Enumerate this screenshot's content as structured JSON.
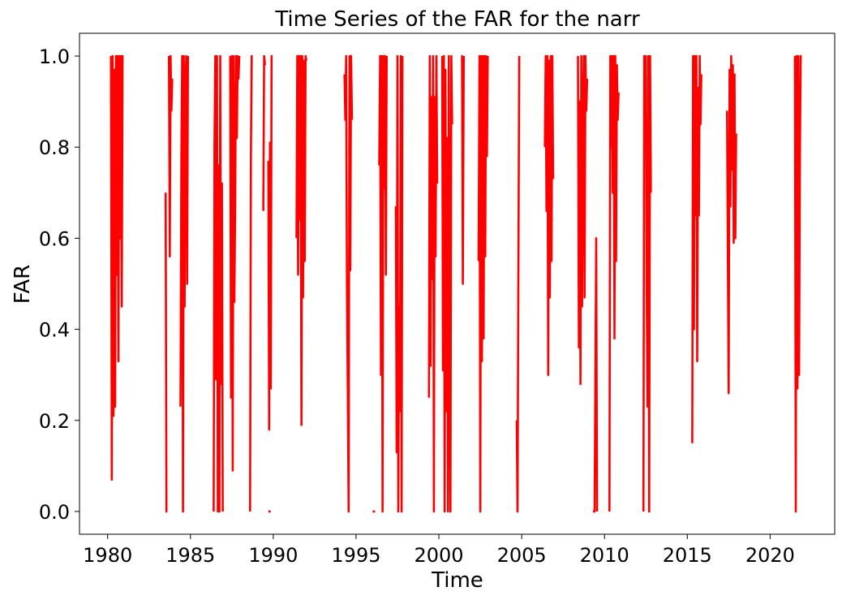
{
  "chart_data": {
    "type": "line",
    "title": "Time Series of the FAR for the narr",
    "xlabel": "Time",
    "ylabel": "FAR",
    "xlim": [
      1978.3,
      2023.9
    ],
    "ylim": [
      -0.05,
      1.05
    ],
    "x_ticks": [
      {
        "value": 1980,
        "label": "1980"
      },
      {
        "value": 1985,
        "label": "1985"
      },
      {
        "value": 1990,
        "label": "1990"
      },
      {
        "value": 1995,
        "label": "1995"
      },
      {
        "value": 2000,
        "label": "2000"
      },
      {
        "value": 2005,
        "label": "2005"
      },
      {
        "value": 2010,
        "label": "2010"
      },
      {
        "value": 2015,
        "label": "2015"
      },
      {
        "value": 2020,
        "label": "2020"
      }
    ],
    "y_ticks": [
      {
        "value": 0.0,
        "label": "0.0"
      },
      {
        "value": 0.2,
        "label": "0.2"
      },
      {
        "value": 0.4,
        "label": "0.4"
      },
      {
        "value": 0.6,
        "label": "0.6"
      },
      {
        "value": 0.8,
        "label": "0.8"
      },
      {
        "value": 1.0,
        "label": "1.0"
      }
    ],
    "grid": false,
    "legend": "none",
    "series": [
      {
        "color": "#ff0000",
        "segments": [
          {
            "x": [
              1980.2,
              1980.25,
              1980.3,
              1980.35,
              1980.4,
              1980.45,
              1980.5,
              1980.55,
              1980.6,
              1980.65,
              1980.7,
              1980.75,
              1980.8,
              1980.85,
              1980.9,
              1980.95
            ],
            "y": [
              1.0,
              0.07,
              1.0,
              0.21,
              0.97,
              0.23,
              1.0,
              0.52,
              1.0,
              0.33,
              1.0,
              0.6,
              1.0,
              0.45,
              1.0,
              1.0
            ]
          },
          {
            "x": [
              1983.5,
              1983.55,
              1983.6
            ],
            "y": [
              0.7,
              0.0,
              0.0
            ]
          },
          {
            "x": [
              1983.7,
              1983.75,
              1983.8,
              1983.85,
              1983.9
            ],
            "y": [
              1.0,
              0.56,
              1.0,
              0.88,
              0.95
            ]
          },
          {
            "x": [
              1984.4,
              1984.45,
              1984.5,
              1984.55,
              1984.6,
              1984.65,
              1984.7,
              1984.75,
              1984.8,
              1984.85
            ],
            "y": [
              0.23,
              0.78,
              1.0,
              0.0,
              1.0,
              0.45,
              0.95,
              1.0,
              0.5,
              1.0
            ]
          },
          {
            "x": [
              1986.4,
              1986.45,
              1986.5,
              1986.55,
              1986.6,
              1986.65,
              1986.7,
              1986.75,
              1986.8,
              1986.85,
              1986.9,
              1986.95
            ],
            "y": [
              0.0,
              0.8,
              1.0,
              0.29,
              1.0,
              0.0,
              0.76,
              0.0,
              1.0,
              0.28,
              0.72,
              0.0
            ]
          },
          {
            "x": [
              1987.4,
              1987.45,
              1987.5,
              1987.55,
              1987.6,
              1987.65,
              1987.7,
              1987.75,
              1987.8,
              1987.85,
              1987.9,
              1987.95
            ],
            "y": [
              1.0,
              0.25,
              1.0,
              0.09,
              1.0,
              0.46,
              0.67,
              1.0,
              0.82,
              1.0,
              0.95,
              1.0
            ]
          },
          {
            "x": [
              1988.6,
              1988.65,
              1988.7,
              1988.75
            ],
            "y": [
              0.0,
              0.78,
              1.0,
              1.0
            ]
          },
          {
            "x": [
              1989.4,
              1989.45,
              1989.5
            ],
            "y": [
              0.66,
              1.0,
              0.98
            ]
          },
          {
            "x": [
              1989.7,
              1989.75,
              1989.8,
              1989.85,
              1989.9,
              1989.95
            ],
            "y": [
              0.77,
              0.18,
              0.81,
              0.27,
              1.0,
              1.0
            ]
          },
          {
            "x": [
              1989.7,
              1989.85
            ],
            "y": [
              0.0,
              0.0
            ]
          },
          {
            "x": [
              1991.4,
              1991.45,
              1991.5,
              1991.55,
              1991.6,
              1991.65,
              1991.7,
              1991.75,
              1991.8,
              1991.85,
              1991.9,
              1991.95,
              1992.0
            ],
            "y": [
              0.6,
              1.0,
              0.52,
              1.0,
              0.64,
              1.0,
              0.19,
              1.0,
              0.47,
              0.99,
              0.55,
              1.0,
              0.99
            ]
          },
          {
            "x": [
              1994.3,
              1994.35,
              1994.4,
              1994.45,
              1994.5,
              1994.55,
              1994.6,
              1994.65,
              1994.7,
              1994.75
            ],
            "y": [
              0.96,
              0.86,
              1.0,
              0.5,
              0.27,
              0.0,
              1.0,
              0.53,
              1.0,
              0.86
            ]
          },
          {
            "x": [
              1996.0,
              1996.15
            ],
            "y": [
              0.0,
              0.0
            ]
          },
          {
            "x": [
              1996.4,
              1996.45,
              1996.5,
              1996.55,
              1996.6,
              1996.65,
              1996.7,
              1996.75,
              1996.8,
              1996.85
            ],
            "y": [
              0.76,
              1.0,
              0.3,
              1.0,
              0.0,
              1.0,
              0.71,
              1.0,
              0.52,
              1.0
            ]
          },
          {
            "x": [
              1997.4,
              1997.45,
              1997.5,
              1997.55,
              1997.6,
              1997.65,
              1997.7,
              1997.75,
              1997.8
            ],
            "y": [
              0.67,
              0.13,
              1.0,
              0.0,
              0.45,
              0.22,
              1.0,
              0.0,
              1.0
            ]
          },
          {
            "x": [
              1999.4,
              1999.45,
              1999.5,
              1999.55,
              1999.6,
              1999.65,
              1999.7,
              1999.75,
              1999.8,
              1999.85,
              1999.9
            ],
            "y": [
              0.25,
              1.0,
              0.32,
              0.91,
              0.51,
              1.0,
              0.0,
              0.91,
              0.56,
              1.0,
              0.72
            ]
          },
          {
            "x": [
              2000.2,
              2000.25,
              2000.3,
              2000.35,
              2000.4,
              2000.45,
              2000.5,
              2000.55,
              2000.6,
              2000.65,
              2000.7,
              2000.75,
              2000.8
            ],
            "y": [
              1.0,
              0.31,
              1.0,
              0.0,
              0.97,
              0.22,
              0.82,
              0.0,
              1.0,
              0.36,
              0.0,
              1.0,
              0.85
            ]
          },
          {
            "x": [
              2001.35,
              2001.4,
              2001.45,
              2001.5
            ],
            "y": [
              1.0,
              1.0,
              0.5,
              1.0
            ]
          },
          {
            "x": [
              2002.4,
              2002.45,
              2002.5,
              2002.55,
              2002.6,
              2002.65,
              2002.7,
              2002.75,
              2002.8,
              2002.85,
              2002.9,
              2002.95
            ],
            "y": [
              0.55,
              1.0,
              0.0,
              1.0,
              0.33,
              1.0,
              0.38,
              1.0,
              0.56,
              1.0,
              0.78,
              1.0
            ]
          },
          {
            "x": [
              2004.7,
              2004.75,
              2004.8,
              2004.85
            ],
            "y": [
              0.2,
              0.0,
              0.5,
              1.0
            ]
          },
          {
            "x": [
              2006.4,
              2006.45,
              2006.5,
              2006.55,
              2006.6,
              2006.65,
              2006.7,
              2006.75,
              2006.8,
              2006.85,
              2006.9
            ],
            "y": [
              0.8,
              1.0,
              0.66,
              1.0,
              0.3,
              0.99,
              0.47,
              1.0,
              0.55,
              1.0,
              0.73
            ]
          },
          {
            "x": [
              2008.4,
              2008.45,
              2008.5,
              2008.55,
              2008.6,
              2008.65,
              2008.7,
              2008.75,
              2008.8,
              2008.85,
              2008.9,
              2008.95
            ],
            "y": [
              1.0,
              0.36,
              0.9,
              0.28,
              1.0,
              0.45,
              0.88,
              1.0,
              0.47,
              1.0,
              0.88,
              0.95
            ]
          },
          {
            "x": [
              2009.3,
              2009.4,
              2009.5,
              2009.55
            ],
            "y": [
              0.0,
              0.0,
              0.6,
              0.0
            ]
          },
          {
            "x": [
              2010.3,
              2010.35,
              2010.4,
              2010.45,
              2010.5,
              2010.55,
              2010.6,
              2010.65,
              2010.7,
              2010.75,
              2010.8,
              2010.85
            ],
            "y": [
              0.0,
              1.0,
              0.8,
              1.0,
              0.7,
              1.0,
              0.38,
              1.0,
              0.55,
              0.98,
              0.86,
              0.92
            ]
          },
          {
            "x": [
              2012.35,
              2012.4,
              2012.45,
              2012.5,
              2012.55,
              2012.6,
              2012.65,
              2012.7,
              2012.75,
              2012.8
            ],
            "y": [
              0.0,
              1.0,
              0.85,
              1.0,
              0.46,
              0.23,
              1.0,
              0.0,
              1.0,
              0.7
            ]
          },
          {
            "x": [
              2015.3,
              2015.35,
              2015.4,
              2015.45,
              2015.5,
              2015.55,
              2015.6,
              2015.65,
              2015.7,
              2015.75,
              2015.8,
              2015.85
            ],
            "y": [
              0.15,
              1.0,
              0.4,
              1.0,
              0.65,
              1.0,
              0.33,
              0.93,
              0.65,
              1.0,
              0.85,
              0.96
            ]
          },
          {
            "x": [
              2017.4,
              2017.45,
              2017.5,
              2017.55,
              2017.6,
              2017.65,
              2017.7,
              2017.75,
              2017.8,
              2017.85,
              2017.9,
              2017.95
            ],
            "y": [
              0.88,
              0.55,
              0.26,
              0.97,
              0.67,
              1.0,
              0.75,
              0.98,
              0.59,
              0.96,
              0.6,
              0.83
            ]
          },
          {
            "x": [
              2021.5,
              2021.55,
              2021.6,
              2021.65,
              2021.7,
              2021.75,
              2021.8,
              2021.85,
              2021.9
            ],
            "y": [
              1.0,
              0.0,
              1.0,
              0.27,
              1.0,
              0.3,
              0.78,
              1.0,
              1.0
            ]
          }
        ]
      }
    ]
  }
}
